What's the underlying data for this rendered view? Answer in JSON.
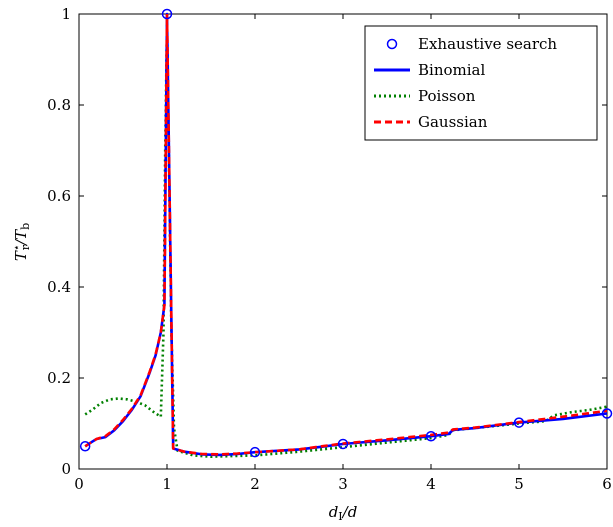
{
  "chart_data": {
    "type": "line",
    "xlabel": {
      "main": "d",
      "sub": "I",
      "rest": "/d"
    },
    "ylabel": {
      "num": "T",
      "num_sub": "r",
      "num_sup": "⋆",
      "sep": "/",
      "den": "T",
      "den_sub": "b"
    },
    "xlim": [
      0,
      6
    ],
    "ylim": [
      0,
      1
    ],
    "x_ticks": [
      0,
      1,
      2,
      3,
      4,
      5,
      6
    ],
    "y_ticks": [
      0,
      0.2,
      0.4,
      0.6,
      0.8,
      1
    ],
    "x_tick_labels": [
      "0",
      "1",
      "2",
      "3",
      "4",
      "5",
      "6"
    ],
    "y_tick_labels": [
      "0",
      "0.2",
      "0.4",
      "0.6",
      "0.8",
      "1"
    ],
    "legend_position": "top-right",
    "series": [
      {
        "name": "Exhaustive search",
        "style": "markers",
        "color": "#0000ff",
        "points": [
          [
            0.07,
            0.05
          ],
          [
            1.0,
            1.0
          ],
          [
            2.0,
            0.037
          ],
          [
            3.0,
            0.055
          ],
          [
            4.0,
            0.072
          ],
          [
            5.0,
            0.102
          ],
          [
            6.0,
            0.122
          ]
        ]
      },
      {
        "name": "Binomial",
        "style": "solid",
        "color": "#0000ff",
        "points": [
          [
            0.07,
            0.05
          ],
          [
            0.15,
            0.06
          ],
          [
            0.2,
            0.066
          ],
          [
            0.3,
            0.07
          ],
          [
            0.4,
            0.085
          ],
          [
            0.5,
            0.105
          ],
          [
            0.6,
            0.13
          ],
          [
            0.7,
            0.16
          ],
          [
            0.8,
            0.21
          ],
          [
            0.87,
            0.25
          ],
          [
            0.93,
            0.3
          ],
          [
            0.97,
            0.36
          ],
          [
            1.0,
            1.0
          ],
          [
            1.03,
            0.6
          ],
          [
            1.07,
            0.045
          ],
          [
            1.2,
            0.038
          ],
          [
            1.4,
            0.032
          ],
          [
            1.6,
            0.031
          ],
          [
            1.8,
            0.033
          ],
          [
            2.0,
            0.037
          ],
          [
            2.5,
            0.043
          ],
          [
            2.8,
            0.05
          ],
          [
            3.0,
            0.055
          ],
          [
            3.5,
            0.063
          ],
          [
            4.0,
            0.072
          ],
          [
            4.2,
            0.077
          ],
          [
            4.25,
            0.086
          ],
          [
            4.5,
            0.09
          ],
          [
            5.0,
            0.102
          ],
          [
            5.5,
            0.11
          ],
          [
            6.0,
            0.122
          ]
        ]
      },
      {
        "name": "Poisson",
        "style": "dotted",
        "color": "#008000",
        "points": [
          [
            0.07,
            0.12
          ],
          [
            0.15,
            0.13
          ],
          [
            0.25,
            0.145
          ],
          [
            0.35,
            0.153
          ],
          [
            0.45,
            0.155
          ],
          [
            0.55,
            0.153
          ],
          [
            0.65,
            0.148
          ],
          [
            0.75,
            0.14
          ],
          [
            0.85,
            0.125
          ],
          [
            0.93,
            0.115
          ],
          [
            0.96,
            0.3
          ],
          [
            0.98,
            0.7
          ],
          [
            1.0,
            0.98
          ],
          [
            1.02,
            0.7
          ],
          [
            1.05,
            0.3
          ],
          [
            1.08,
            0.09
          ],
          [
            1.12,
            0.04
          ],
          [
            1.3,
            0.03
          ],
          [
            1.5,
            0.027
          ],
          [
            2.0,
            0.03
          ],
          [
            2.5,
            0.038
          ],
          [
            3.0,
            0.048
          ],
          [
            3.5,
            0.058
          ],
          [
            4.0,
            0.068
          ],
          [
            4.2,
            0.075
          ],
          [
            4.25,
            0.085
          ],
          [
            4.5,
            0.09
          ],
          [
            5.0,
            0.1
          ],
          [
            5.3,
            0.105
          ],
          [
            5.4,
            0.118
          ],
          [
            5.6,
            0.125
          ],
          [
            5.8,
            0.13
          ],
          [
            6.0,
            0.137
          ]
        ]
      },
      {
        "name": "Gaussian",
        "style": "dashed",
        "color": "#ff0000",
        "points": [
          [
            0.07,
            0.05
          ],
          [
            0.15,
            0.06
          ],
          [
            0.2,
            0.066
          ],
          [
            0.3,
            0.072
          ],
          [
            0.4,
            0.087
          ],
          [
            0.5,
            0.108
          ],
          [
            0.6,
            0.132
          ],
          [
            0.7,
            0.162
          ],
          [
            0.8,
            0.212
          ],
          [
            0.87,
            0.252
          ],
          [
            0.93,
            0.3
          ],
          [
            0.97,
            0.36
          ],
          [
            1.0,
            1.0
          ],
          [
            1.03,
            0.6
          ],
          [
            1.07,
            0.045
          ],
          [
            1.2,
            0.038
          ],
          [
            1.4,
            0.033
          ],
          [
            1.6,
            0.032
          ],
          [
            1.8,
            0.034
          ],
          [
            2.0,
            0.037
          ],
          [
            2.5,
            0.043
          ],
          [
            2.8,
            0.051
          ],
          [
            3.0,
            0.056
          ],
          [
            3.5,
            0.065
          ],
          [
            4.0,
            0.075
          ],
          [
            4.2,
            0.08
          ],
          [
            4.25,
            0.087
          ],
          [
            4.5,
            0.091
          ],
          [
            5.0,
            0.103
          ],
          [
            5.5,
            0.115
          ],
          [
            6.0,
            0.128
          ]
        ]
      }
    ]
  }
}
